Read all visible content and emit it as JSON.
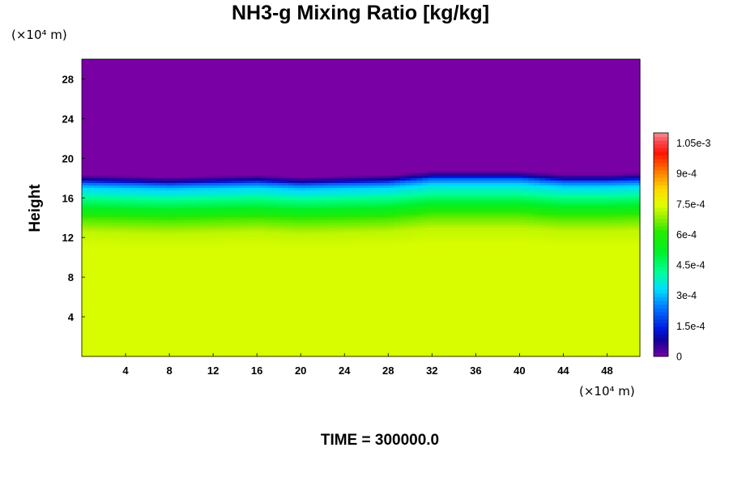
{
  "chart_data": {
    "type": "heatmap",
    "title": "NH3-g Mixing Ratio [kg/kg]",
    "ylabel": "Height",
    "x_unit": "(×10⁴ m)",
    "y_unit": "(×10⁴ m)",
    "footer": "TIME = 300000.0",
    "xlim": [
      0,
      51
    ],
    "ylim": [
      0,
      30
    ],
    "x_ticks": [
      4,
      8,
      12,
      16,
      20,
      24,
      28,
      32,
      36,
      40,
      44,
      48
    ],
    "y_ticks": [
      4,
      8,
      12,
      16,
      20,
      24,
      28
    ],
    "colorbar": {
      "range": [
        0,
        0.0011
      ],
      "tick_values": [
        0,
        0.00015,
        0.0003,
        0.00045,
        0.0006,
        0.00075,
        0.0009,
        0.00105
      ],
      "tick_labels": [
        "0",
        "1.5e-4",
        "3e-4",
        "4.5e-4",
        "6e-4",
        "7.5e-4",
        "9e-4",
        "1.05e-3"
      ]
    },
    "profile": {
      "description_x": [
        0,
        4,
        8,
        12,
        16,
        20,
        24,
        28,
        32,
        36,
        40,
        44,
        48,
        51
      ],
      "top_height": [
        17.5,
        17.4,
        17.3,
        17.4,
        17.5,
        17.3,
        17.4,
        17.5,
        17.9,
        17.9,
        17.9,
        17.6,
        17.6,
        17.7
      ],
      "height_levels": [
        0,
        11,
        12.5,
        14,
        15,
        16,
        17,
        17.5,
        17.8,
        18.3,
        30
      ],
      "values": [
        0.00074,
        0.00074,
        0.00072,
        0.00063,
        0.00052,
        0.00042,
        0.00032,
        0.00022,
        9e-05,
        0,
        0
      ]
    }
  }
}
